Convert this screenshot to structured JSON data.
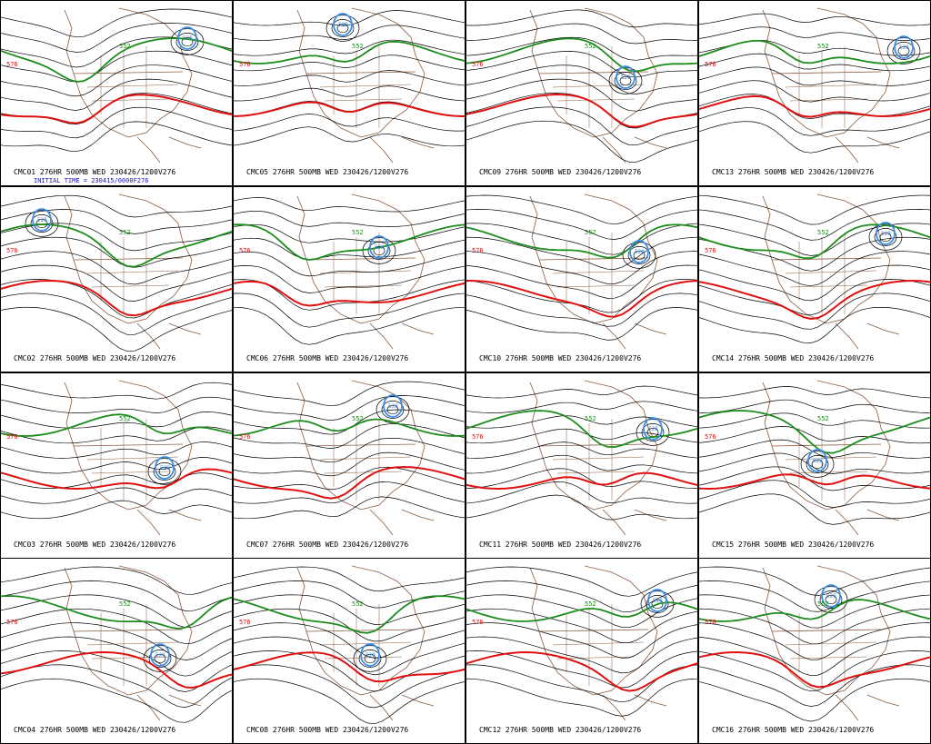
{
  "initial_time": "INITIAL TIME = 230415/0000F276",
  "colors": {
    "height_lines": "#000000",
    "contour_576": "#e01010",
    "contour_552": "#1c8c1c",
    "contour_low": "#3a8ee8",
    "geography": "#8b5a3c",
    "initial_time_text": "#1414c8"
  },
  "contour_labels": {
    "red": "576",
    "green": "552",
    "blue": "528"
  },
  "panels": [
    {
      "id": "CMC01",
      "caption": "CMC01 276HR 500MB WED 230426/1200V276"
    },
    {
      "id": "CMC05",
      "caption": "CMC05 276HR 500MB WED 230426/1200V276"
    },
    {
      "id": "CMC09",
      "caption": "CMC09 276HR 500MB WED 230426/1200V276"
    },
    {
      "id": "CMC13",
      "caption": "CMC13 276HR 500MB WED 230426/1200V276"
    },
    {
      "id": "CMC02",
      "caption": "CMC02 276HR 500MB WED 230426/1200V276"
    },
    {
      "id": "CMC06",
      "caption": "CMC06 276HR 500MB WED 230426/1200V276"
    },
    {
      "id": "CMC10",
      "caption": "CMC10 276HR 500MB WED 230426/1200V276"
    },
    {
      "id": "CMC14",
      "caption": "CMC14 276HR 500MB WED 230426/1200V276"
    },
    {
      "id": "CMC03",
      "caption": "CMC03 276HR 500MB WED 230426/1200V276"
    },
    {
      "id": "CMC07",
      "caption": "CMC07 276HR 500MB WED 230426/1200V276"
    },
    {
      "id": "CMC11",
      "caption": "CMC11 276HR 500MB WED 230426/1200V276"
    },
    {
      "id": "CMC15",
      "caption": "CMC15 276HR 500MB WED 230426/1200V276"
    },
    {
      "id": "CMC04",
      "caption": "CMC04 276HR 500MB WED 230426/1200V276"
    },
    {
      "id": "CMC08",
      "caption": "CMC08 276HR 500MB WED 230426/1200V276"
    },
    {
      "id": "CMC12",
      "caption": "CMC12 276HR 500MB WED 230426/1200V276"
    },
    {
      "id": "CMC16",
      "caption": "CMC16 276HR 500MB WED 230426/1200V276"
    }
  ]
}
